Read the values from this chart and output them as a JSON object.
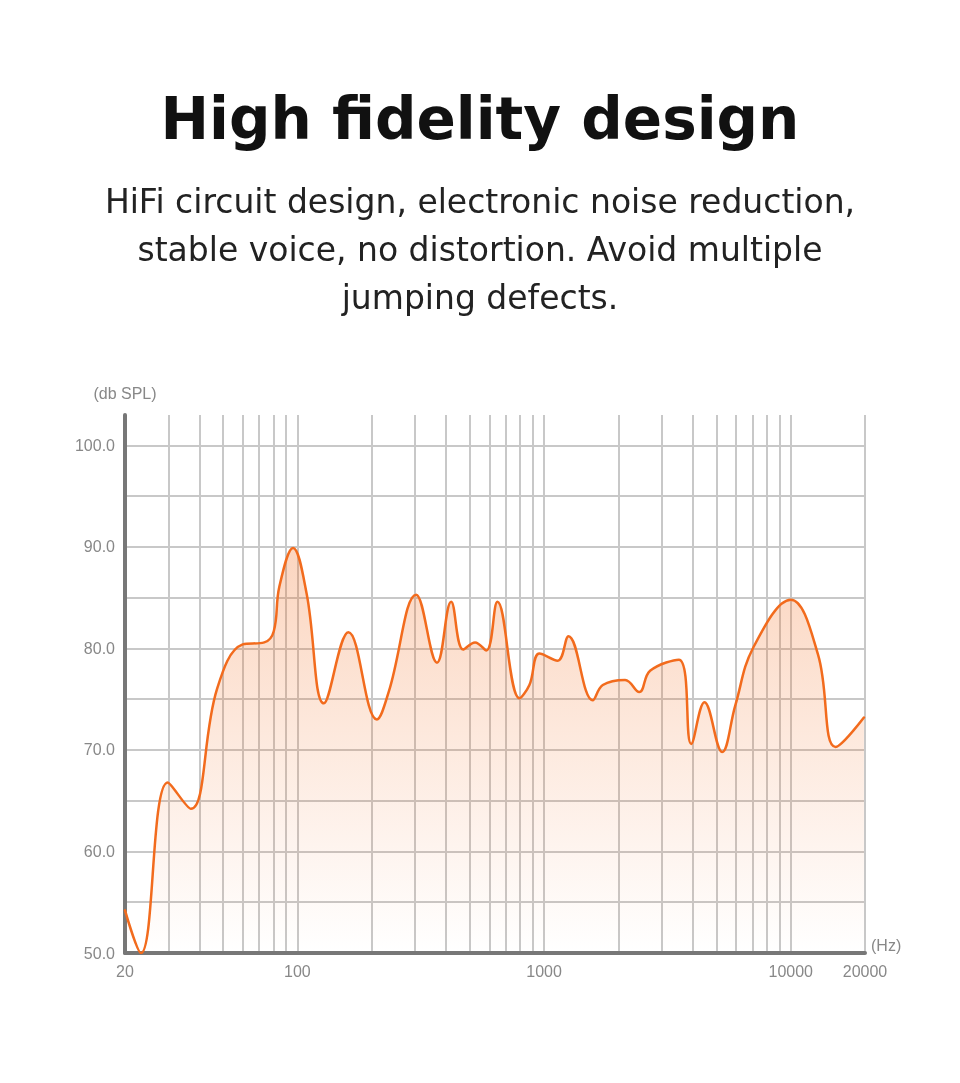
{
  "chart_data": {
    "type": "area",
    "title": "High fidelity design",
    "subtitle": "HiFi circuit design, electronic noise reduction, stable voice, no distortion. Avoid multiple jumping defects.",
    "xlabel": "(Hz)",
    "ylabel": "(db SPL)",
    "log": "x",
    "grid": true,
    "marker": "none",
    "line_style": "solid",
    "xlim": [
      20,
      20000
    ],
    "xticks": [
      20,
      {
        "value": 30,
        "label": null
      },
      {
        "value": 40,
        "label": null
      },
      {
        "value": 50,
        "label": null
      },
      {
        "value": 60,
        "label": null
      },
      {
        "value": 70,
        "label": null
      },
      {
        "value": 80,
        "label": null
      },
      {
        "value": 90,
        "label": null
      },
      100,
      {
        "value": 200,
        "label": null
      },
      {
        "value": 300,
        "label": null
      },
      {
        "value": 400,
        "label": null
      },
      {
        "value": 500,
        "label": null
      },
      {
        "value": 600,
        "label": null
      },
      {
        "value": 700,
        "label": null
      },
      {
        "value": 800,
        "label": null
      },
      {
        "value": 900,
        "label": null
      },
      1000,
      {
        "value": 2000,
        "label": null
      },
      {
        "value": 3000,
        "label": null
      },
      {
        "value": 4000,
        "label": null
      },
      {
        "value": 5000,
        "label": null
      },
      {
        "value": 6000,
        "label": null
      },
      {
        "value": 7000,
        "label": null
      },
      {
        "value": 8000,
        "label": null
      },
      {
        "value": 9000,
        "label": null
      },
      10000,
      20000
    ],
    "ylim": [
      50,
      103
    ],
    "yticks": [
      {
        "value": 50,
        "label": "50.0"
      },
      {
        "value": 55,
        "label": null
      },
      {
        "value": 60,
        "label": "60.0"
      },
      {
        "value": 65,
        "label": null
      },
      {
        "value": 70,
        "label": "70.0"
      },
      {
        "value": 75,
        "label": null
      },
      {
        "value": 80,
        "label": "80.0"
      },
      {
        "value": 85,
        "label": null
      },
      {
        "value": 90,
        "label": "90.0"
      },
      {
        "value": 95,
        "label": null
      },
      {
        "value": 100,
        "label": "100.0"
      }
    ],
    "x": [
      20,
      23.2,
      29.8,
      37,
      47.2,
      60,
      73.4,
      80.2,
      84.5,
      96,
      109,
      128,
      161,
      210,
      235,
      303,
      368,
      420,
      470,
      525,
      583,
      647,
      795,
      872,
      958,
      1135,
      1256,
      1575,
      1730,
      2130,
      2430,
      2690,
      3520,
      3950,
      4470,
      5270,
      5960,
      7050,
      10000,
      12900,
      15200,
      19800
    ],
    "series": [
      {
        "color": "#f26b1d",
        "values": [
          54.2,
          50,
          66.8,
          64.2,
          76,
          80.4,
          80.6,
          81.7,
          86.1,
          89.9,
          85.4,
          74.6,
          81.6,
          73,
          75.8,
          85.3,
          78.6,
          84.6,
          79.9,
          80.6,
          79.8,
          84.6,
          75.1,
          76.4,
          79.5,
          78.8,
          81.2,
          74.9,
          76.4,
          76.9,
          75.7,
          77.8,
          78.9,
          70.6,
          74.7,
          69.8,
          74.4,
          80.1,
          84.8,
          79.4,
          70.3,
          73.2
        ]
      }
    ]
  }
}
